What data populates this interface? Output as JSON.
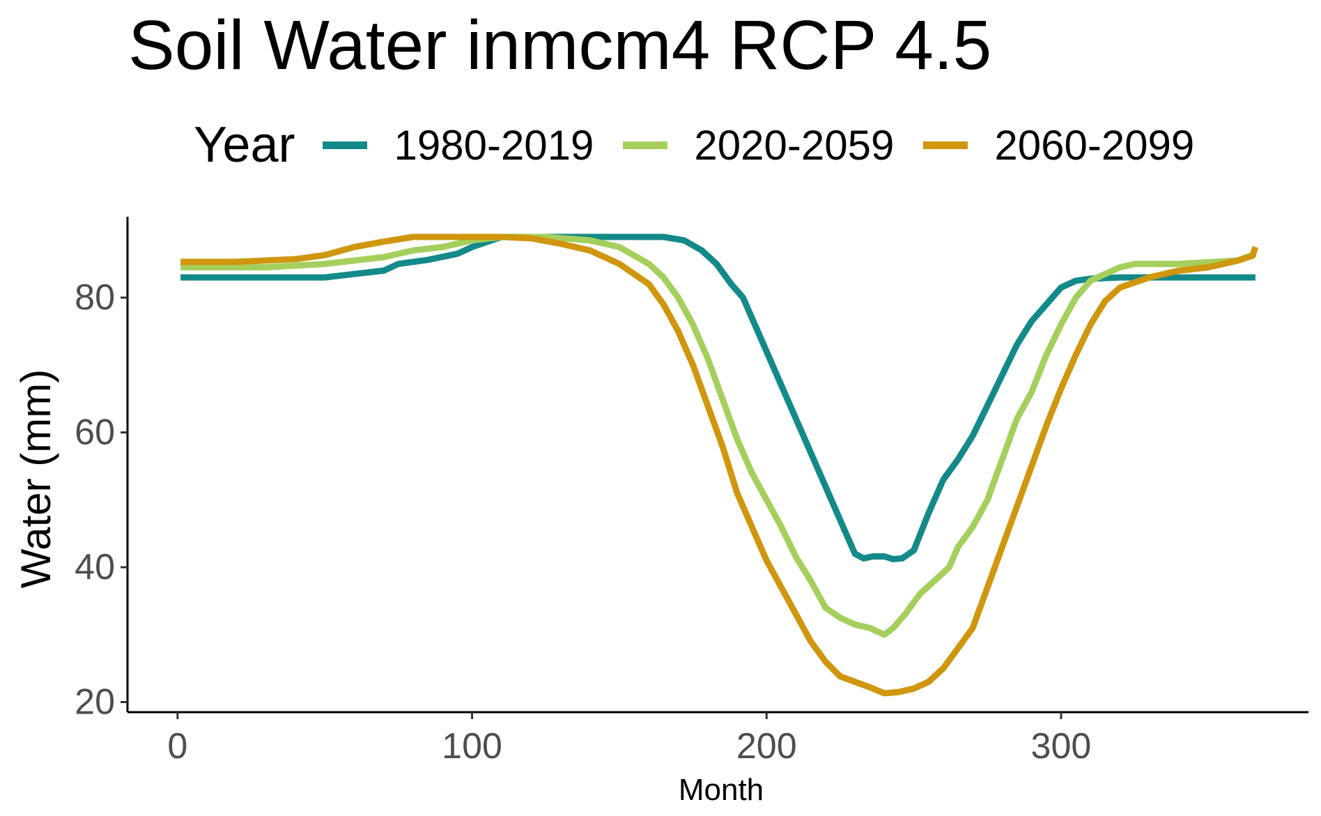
{
  "chart_data": {
    "type": "line",
    "title": "Soil Water inmcm4 RCP 4.5",
    "xlabel": "Month",
    "ylabel": "Water (mm)",
    "xlim": [
      -17,
      384
    ],
    "ylim": [
      18.5,
      92
    ],
    "xticks": [
      0,
      100,
      200,
      300
    ],
    "yticks": [
      20,
      40,
      60,
      80
    ],
    "legend": {
      "title": "Year",
      "position": "top"
    },
    "grid": false,
    "series": [
      {
        "name": "1980-2019",
        "color": "#138A89",
        "points": [
          [
            1,
            83
          ],
          [
            20,
            83
          ],
          [
            50,
            83
          ],
          [
            60,
            83.5
          ],
          [
            70,
            84
          ],
          [
            75,
            85
          ],
          [
            85,
            85.6
          ],
          [
            95,
            86.5
          ],
          [
            100,
            87.5
          ],
          [
            110,
            89
          ],
          [
            150,
            89
          ],
          [
            165,
            89
          ],
          [
            172,
            88.5
          ],
          [
            178,
            87
          ],
          [
            183,
            85
          ],
          [
            188,
            82
          ],
          [
            192,
            80
          ],
          [
            197,
            75
          ],
          [
            202,
            70
          ],
          [
            207,
            65
          ],
          [
            212,
            60
          ],
          [
            217,
            55
          ],
          [
            222,
            50
          ],
          [
            226,
            46
          ],
          [
            230,
            42
          ],
          [
            233,
            41.3
          ],
          [
            236,
            41.6
          ],
          [
            240,
            41.6
          ],
          [
            243,
            41.2
          ],
          [
            246,
            41.3
          ],
          [
            250,
            42.5
          ],
          [
            255,
            48
          ],
          [
            260,
            53
          ],
          [
            265,
            56
          ],
          [
            270,
            59.5
          ],
          [
            275,
            64
          ],
          [
            280,
            68.5
          ],
          [
            285,
            73
          ],
          [
            290,
            76.5
          ],
          [
            295,
            79
          ],
          [
            300,
            81.5
          ],
          [
            305,
            82.5
          ],
          [
            310,
            82.8
          ],
          [
            320,
            83
          ],
          [
            366,
            83
          ]
        ]
      },
      {
        "name": "2020-2059",
        "color": "#A5CF5C",
        "points": [
          [
            1,
            84.5
          ],
          [
            30,
            84.5
          ],
          [
            50,
            85
          ],
          [
            60,
            85.5
          ],
          [
            70,
            86
          ],
          [
            80,
            87
          ],
          [
            90,
            87.5
          ],
          [
            100,
            88.5
          ],
          [
            110,
            89
          ],
          [
            125,
            89
          ],
          [
            140,
            88.5
          ],
          [
            150,
            87.5
          ],
          [
            160,
            85
          ],
          [
            165,
            83
          ],
          [
            170,
            80
          ],
          [
            175,
            76
          ],
          [
            180,
            71
          ],
          [
            185,
            65
          ],
          [
            190,
            59
          ],
          [
            195,
            54
          ],
          [
            200,
            50
          ],
          [
            205,
            46
          ],
          [
            210,
            41.5
          ],
          [
            215,
            38
          ],
          [
            220,
            34
          ],
          [
            225,
            32.5
          ],
          [
            230,
            31.5
          ],
          [
            235,
            31
          ],
          [
            240,
            30
          ],
          [
            243,
            31
          ],
          [
            247,
            33
          ],
          [
            252,
            36
          ],
          [
            257,
            38
          ],
          [
            262,
            40
          ],
          [
            265,
            43
          ],
          [
            270,
            46
          ],
          [
            275,
            50
          ],
          [
            280,
            56
          ],
          [
            285,
            62
          ],
          [
            290,
            66
          ],
          [
            295,
            71.5
          ],
          [
            300,
            76
          ],
          [
            305,
            80
          ],
          [
            310,
            82.5
          ],
          [
            315,
            83.5
          ],
          [
            320,
            84.5
          ],
          [
            325,
            85
          ],
          [
            340,
            85
          ],
          [
            360,
            85.5
          ],
          [
            366,
            86.5
          ]
        ]
      },
      {
        "name": "2060-2099",
        "color": "#CF960E",
        "points": [
          [
            1,
            85.3
          ],
          [
            20,
            85.3
          ],
          [
            40,
            85.7
          ],
          [
            50,
            86.3
          ],
          [
            60,
            87.5
          ],
          [
            70,
            88.3
          ],
          [
            80,
            89
          ],
          [
            100,
            89
          ],
          [
            110,
            89
          ],
          [
            120,
            88.8
          ],
          [
            130,
            88
          ],
          [
            140,
            87
          ],
          [
            150,
            85
          ],
          [
            160,
            82
          ],
          [
            165,
            79
          ],
          [
            170,
            75
          ],
          [
            175,
            70
          ],
          [
            180,
            64
          ],
          [
            185,
            58
          ],
          [
            190,
            51
          ],
          [
            195,
            46
          ],
          [
            200,
            41
          ],
          [
            205,
            37
          ],
          [
            210,
            33
          ],
          [
            215,
            29
          ],
          [
            220,
            26
          ],
          [
            225,
            23.8
          ],
          [
            230,
            23
          ],
          [
            235,
            22.2
          ],
          [
            240,
            21.3
          ],
          [
            245,
            21.5
          ],
          [
            250,
            22
          ],
          [
            255,
            23
          ],
          [
            260,
            25
          ],
          [
            265,
            28
          ],
          [
            270,
            31
          ],
          [
            275,
            37
          ],
          [
            280,
            43
          ],
          [
            285,
            49
          ],
          [
            290,
            55
          ],
          [
            295,
            61
          ],
          [
            300,
            66.5
          ],
          [
            305,
            71.5
          ],
          [
            310,
            76
          ],
          [
            315,
            79.5
          ],
          [
            320,
            81.5
          ],
          [
            330,
            83
          ],
          [
            340,
            84
          ],
          [
            350,
            84.5
          ],
          [
            360,
            85.5
          ],
          [
            365,
            86.2
          ],
          [
            366,
            87.5
          ]
        ]
      }
    ]
  }
}
